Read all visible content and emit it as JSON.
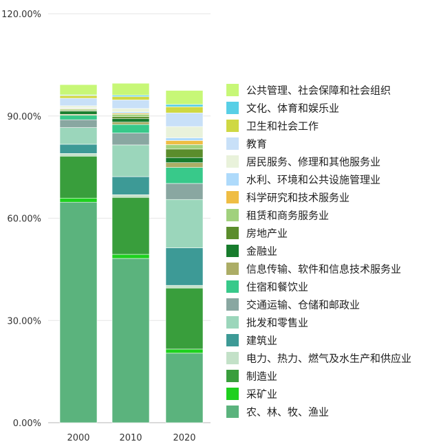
{
  "chart_data": {
    "type": "bar",
    "stacked": true,
    "title": "",
    "xlabel": "",
    "ylabel": "",
    "categories": [
      "2000",
      "2010",
      "2020"
    ],
    "ylim": [
      0,
      1.2
    ],
    "y_ticks": [
      "0.00%",
      "30.00%",
      "60.00%",
      "90.00%",
      "120.00%"
    ],
    "y_tick_values": [
      0,
      0.3,
      0.6,
      0.9,
      1.2
    ],
    "grid": "horizontal",
    "legend_position": "right",
    "series": [
      {
        "name": "农、林、牧、渔业",
        "color": "#5bb37d",
        "values": [
          0.647,
          0.482,
          0.204
        ]
      },
      {
        "name": "采矿业",
        "color": "#1ed01e",
        "values": [
          0.012,
          0.012,
          0.012
        ]
      },
      {
        "name": "制造业",
        "color": "#399e3c",
        "values": [
          0.123,
          0.167,
          0.179
        ]
      },
      {
        "name": "电力、热力、燃气及水生产和供应业",
        "color": "#c3e1c8",
        "values": [
          0.008,
          0.008,
          0.008
        ]
      },
      {
        "name": "建筑业",
        "color": "#3d9a96",
        "values": [
          0.027,
          0.053,
          0.11
        ]
      },
      {
        "name": "批发和零售业",
        "color": "#9bd6bb",
        "values": [
          0.049,
          0.093,
          0.142
        ]
      },
      {
        "name": "交通运输、仓储和邮政业",
        "color": "#89a7a1",
        "values": [
          0.023,
          0.035,
          0.047
        ]
      },
      {
        "name": "住宿和餐饮业",
        "color": "#38c98a",
        "values": [
          0.013,
          0.025,
          0.047
        ]
      },
      {
        "name": "信息传输、软件和信息技术服务业",
        "color": "#acad66",
        "values": [
          0.003,
          0.007,
          0.014
        ]
      },
      {
        "name": "金融业",
        "color": "#177c2d",
        "values": [
          0.009,
          0.01,
          0.015
        ]
      },
      {
        "name": "房地产业",
        "color": "#5b8d2c",
        "values": [
          0.003,
          0.006,
          0.025
        ]
      },
      {
        "name": "租赁和商务服务业",
        "color": "#a1d17d",
        "values": [
          0.003,
          0.007,
          0.013
        ]
      },
      {
        "name": "科学研究和技术服务业",
        "color": "#efbd44",
        "values": [
          0.002,
          0.003,
          0.012
        ]
      },
      {
        "name": "水利、环境和公共设施管理业",
        "color": "#aedafb",
        "values": [
          0.002,
          0.004,
          0.008
        ]
      },
      {
        "name": "居民服务、修理和其他服务业",
        "color": "#e9f2db",
        "values": [
          0.006,
          0.01,
          0.033
        ]
      },
      {
        "name": "教育",
        "color": "#c8e0f8",
        "values": [
          0.022,
          0.025,
          0.04
        ]
      },
      {
        "name": "卫生和社会工作",
        "color": "#cfd843",
        "values": [
          0.008,
          0.01,
          0.018
        ]
      },
      {
        "name": "文化、体育和娱乐业",
        "color": "#58cfe6",
        "values": [
          0.002,
          0.004,
          0.007
        ]
      },
      {
        "name": "公共管理、社会保障和社会组织",
        "color": "#c7f777",
        "values": [
          0.03,
          0.035,
          0.041
        ]
      }
    ]
  }
}
